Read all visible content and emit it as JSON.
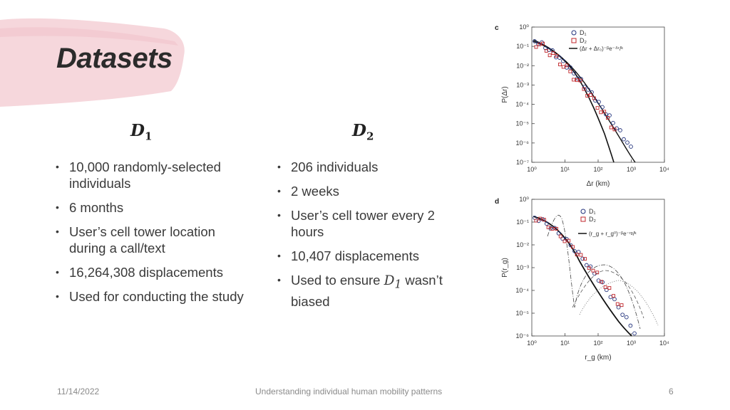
{
  "slide": {
    "title": "Datasets",
    "columns": [
      {
        "heading_base": "D",
        "heading_sub": "1",
        "bullets": [
          {
            "text": "10,000 randomly-selected individuals"
          },
          {
            "text": "6 months"
          },
          {
            "text": "User’s cell tower location during a call/text"
          },
          {
            "text": "16,264,308 displacements"
          },
          {
            "text": "Used for conducting the study"
          }
        ]
      },
      {
        "heading_base": "D",
        "heading_sub": "2",
        "bullets": [
          {
            "text": "206 individuals"
          },
          {
            "text": "2 weeks"
          },
          {
            "text": "User’s cell tower every 2 hours"
          },
          {
            "text": "10,407 displacements"
          },
          {
            "text_pre": "Used to ensure ",
            "math_base": "D",
            "math_sub": "1",
            "text_post": " wasn’t biased"
          }
        ]
      }
    ]
  },
  "figures": {
    "panel_c": {
      "label": "c",
      "ylabel": "P(Δr)",
      "xlabel": "Δr (km)",
      "y_ticks": [
        "10⁰",
        "10⁻¹",
        "10⁻²",
        "10⁻³",
        "10⁻⁴",
        "10⁻⁵",
        "10⁻⁶",
        "10⁻⁷"
      ],
      "x_ticks": [
        "10⁰",
        "10¹",
        "10²",
        "10³",
        "10⁴"
      ],
      "legend": [
        "D₁",
        "D₂",
        "(Δr + Δr₀)⁻ᵝe⁻ᐞʳ/ᵏ"
      ]
    },
    "panel_d": {
      "label": "d",
      "ylabel": "P(r_g)",
      "xlabel": "r_g (km)",
      "y_ticks": [
        "10⁰",
        "10⁻¹",
        "10⁻²",
        "10⁻³",
        "10⁻⁴",
        "10⁻⁵",
        "10⁻⁶"
      ],
      "x_ticks": [
        "10⁰",
        "10¹",
        "10²",
        "10³",
        "10⁴"
      ],
      "legend": [
        "D₁",
        "D₂",
        "(r_g + r_g⁰)⁻ᵝe⁻ʳᵍ/ᵏ"
      ]
    },
    "colors": {
      "d1": "#1f2f7a",
      "d2": "#c0262b",
      "fit": "#111111"
    }
  },
  "footer": {
    "date": "11/14/2022",
    "center": "Understanding individual human mobility patterns",
    "page": "6"
  }
}
